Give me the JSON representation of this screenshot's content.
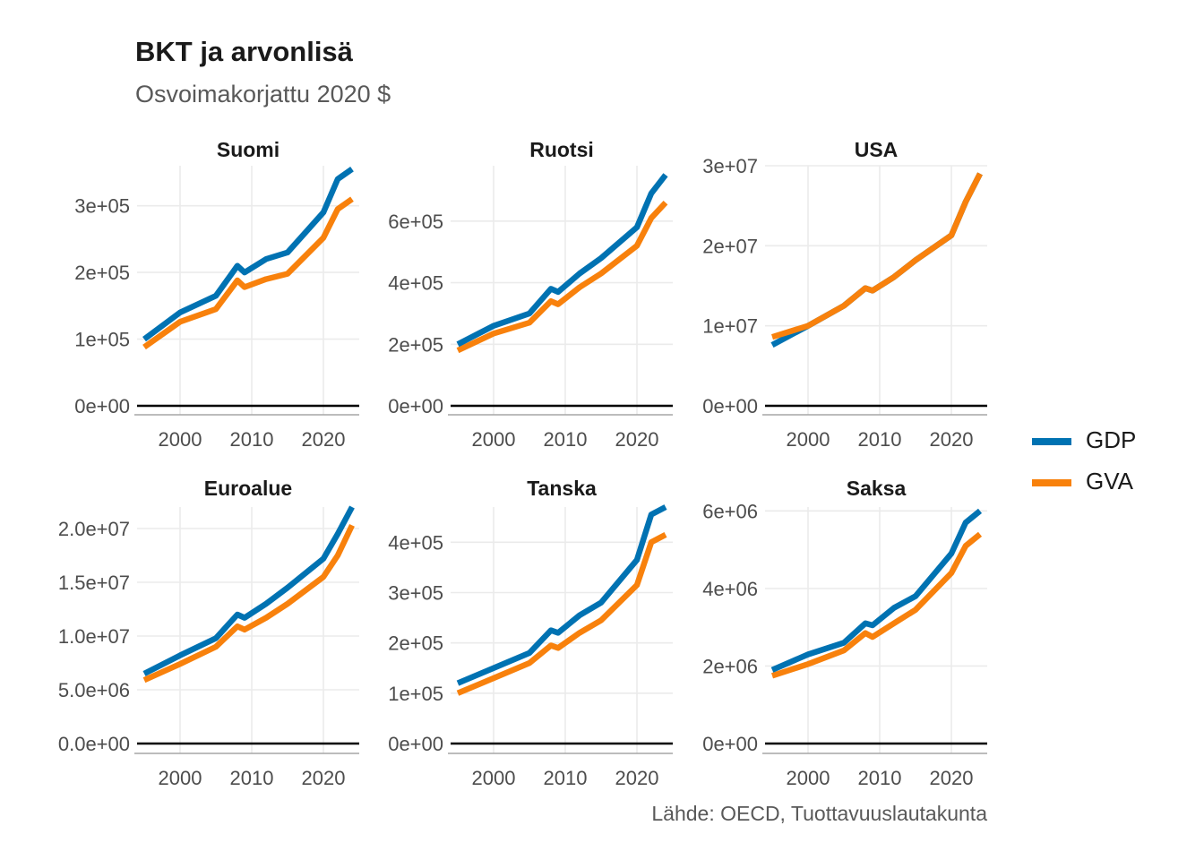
{
  "title": "BKT ja arvonlisä",
  "subtitle": "Osvoimakorjattu 2020 $",
  "caption": "Lähde: OECD, Tuottavuuslautakunta",
  "colors": {
    "GDP": "#0072b2",
    "GVA": "#f8810c"
  },
  "legend": [
    {
      "name": "GDP",
      "color": "#0072b2"
    },
    {
      "name": "GVA",
      "color": "#f8810c"
    }
  ],
  "chart_data": [
    {
      "type": "line",
      "panel": "Suomi",
      "x": [
        1995,
        2000,
        2005,
        2008,
        2009,
        2012,
        2015,
        2020,
        2022,
        2024
      ],
      "xticks": [
        2000,
        2010,
        2020
      ],
      "xlim": [
        1994,
        2025
      ],
      "ylim": [
        0,
        360000
      ],
      "yticks": [
        {
          "value": 0,
          "label": "0e+00"
        },
        {
          "value": 100000,
          "label": "1e+05"
        },
        {
          "value": 200000,
          "label": "2e+05"
        },
        {
          "value": 300000,
          "label": "3e+05"
        }
      ],
      "series": [
        {
          "name": "GDP",
          "values": [
            100000,
            140000,
            165000,
            210000,
            200000,
            220000,
            230000,
            290000,
            340000,
            355000
          ]
        },
        {
          "name": "GVA",
          "values": [
            88000,
            126000,
            145000,
            188000,
            178000,
            190000,
            198000,
            252000,
            295000,
            310000
          ]
        }
      ]
    },
    {
      "type": "line",
      "panel": "Ruotsi",
      "x": [
        1995,
        2000,
        2005,
        2008,
        2009,
        2012,
        2015,
        2020,
        2022,
        2024
      ],
      "xticks": [
        2000,
        2010,
        2020
      ],
      "xlim": [
        1994,
        2025
      ],
      "ylim": [
        0,
        780000
      ],
      "yticks": [
        {
          "value": 0,
          "label": "0e+00"
        },
        {
          "value": 200000,
          "label": "2e+05"
        },
        {
          "value": 400000,
          "label": "4e+05"
        },
        {
          "value": 600000,
          "label": "6e+05"
        }
      ],
      "series": [
        {
          "name": "GDP",
          "values": [
            200000,
            260000,
            300000,
            380000,
            370000,
            430000,
            480000,
            580000,
            690000,
            750000
          ]
        },
        {
          "name": "GVA",
          "values": [
            180000,
            235000,
            270000,
            340000,
            330000,
            385000,
            430000,
            520000,
            610000,
            660000
          ]
        }
      ]
    },
    {
      "type": "line",
      "panel": "USA",
      "x": [
        1995,
        2000,
        2005,
        2008,
        2009,
        2012,
        2015,
        2020,
        2022,
        2024
      ],
      "xticks": [
        2000,
        2010,
        2020
      ],
      "xlim": [
        1994,
        2025
      ],
      "ylim": [
        0,
        30000000
      ],
      "yticks": [
        {
          "value": 0,
          "label": "0e+00"
        },
        {
          "value": 10000000,
          "label": "1e+07"
        },
        {
          "value": 20000000,
          "label": "2e+07"
        },
        {
          "value": 30000000,
          "label": "3e+07"
        }
      ],
      "series": [
        {
          "name": "GDP",
          "values": [
            7600000,
            10000000,
            12500000,
            14700000,
            14400000,
            16100000,
            18200000,
            21300000,
            25500000,
            29000000
          ]
        },
        {
          "name": "GVA",
          "values": [
            8600000,
            10000000,
            12500000,
            14700000,
            14400000,
            16100000,
            18200000,
            21300000,
            25500000,
            29000000
          ]
        }
      ]
    },
    {
      "type": "line",
      "panel": "Euroalue",
      "x": [
        1995,
        2000,
        2005,
        2008,
        2009,
        2012,
        2015,
        2020,
        2022,
        2024
      ],
      "xticks": [
        2000,
        2010,
        2020
      ],
      "xlim": [
        1994,
        2025
      ],
      "ylim": [
        0,
        22000000
      ],
      "yticks": [
        {
          "value": 0,
          "label": "0.0e+00"
        },
        {
          "value": 5000000,
          "label": "5.0e+06"
        },
        {
          "value": 10000000,
          "label": "1.0e+07"
        },
        {
          "value": 15000000,
          "label": "1.5e+07"
        },
        {
          "value": 20000000,
          "label": "2.0e+07"
        }
      ],
      "series": [
        {
          "name": "GDP",
          "values": [
            6500000,
            8200000,
            9800000,
            12000000,
            11700000,
            13000000,
            14500000,
            17200000,
            19500000,
            22000000
          ]
        },
        {
          "name": "GVA",
          "values": [
            5900000,
            7400000,
            9000000,
            10900000,
            10600000,
            11700000,
            13000000,
            15500000,
            17500000,
            20300000
          ]
        }
      ]
    },
    {
      "type": "line",
      "panel": "Tanska",
      "x": [
        1995,
        2000,
        2005,
        2008,
        2009,
        2012,
        2015,
        2020,
        2022,
        2024
      ],
      "xticks": [
        2000,
        2010,
        2020
      ],
      "xlim": [
        1994,
        2025
      ],
      "ylim": [
        0,
        470000
      ],
      "yticks": [
        {
          "value": 0,
          "label": "0e+00"
        },
        {
          "value": 100000,
          "label": "1e+05"
        },
        {
          "value": 200000,
          "label": "2e+05"
        },
        {
          "value": 300000,
          "label": "3e+05"
        },
        {
          "value": 400000,
          "label": "4e+05"
        }
      ],
      "series": [
        {
          "name": "GDP",
          "values": [
            120000,
            150000,
            180000,
            225000,
            220000,
            255000,
            280000,
            365000,
            455000,
            470000
          ]
        },
        {
          "name": "GVA",
          "values": [
            100000,
            130000,
            160000,
            195000,
            190000,
            220000,
            245000,
            315000,
            400000,
            415000
          ]
        }
      ]
    },
    {
      "type": "line",
      "panel": "Saksa",
      "x": [
        1995,
        2000,
        2005,
        2008,
        2009,
        2012,
        2015,
        2020,
        2022,
        2024
      ],
      "xticks": [
        2000,
        2010,
        2020
      ],
      "xlim": [
        1994,
        2025
      ],
      "ylim": [
        0,
        6100000
      ],
      "yticks": [
        {
          "value": 0,
          "label": "0e+00"
        },
        {
          "value": 2000000,
          "label": "2e+06"
        },
        {
          "value": 4000000,
          "label": "4e+06"
        },
        {
          "value": 6000000,
          "label": "6e+06"
        }
      ],
      "series": [
        {
          "name": "GDP",
          "values": [
            1900000,
            2300000,
            2600000,
            3100000,
            3050000,
            3500000,
            3800000,
            4900000,
            5700000,
            6000000
          ]
        },
        {
          "name": "GVA",
          "values": [
            1750000,
            2050000,
            2400000,
            2850000,
            2750000,
            3100000,
            3450000,
            4400000,
            5100000,
            5400000
          ]
        }
      ]
    }
  ]
}
